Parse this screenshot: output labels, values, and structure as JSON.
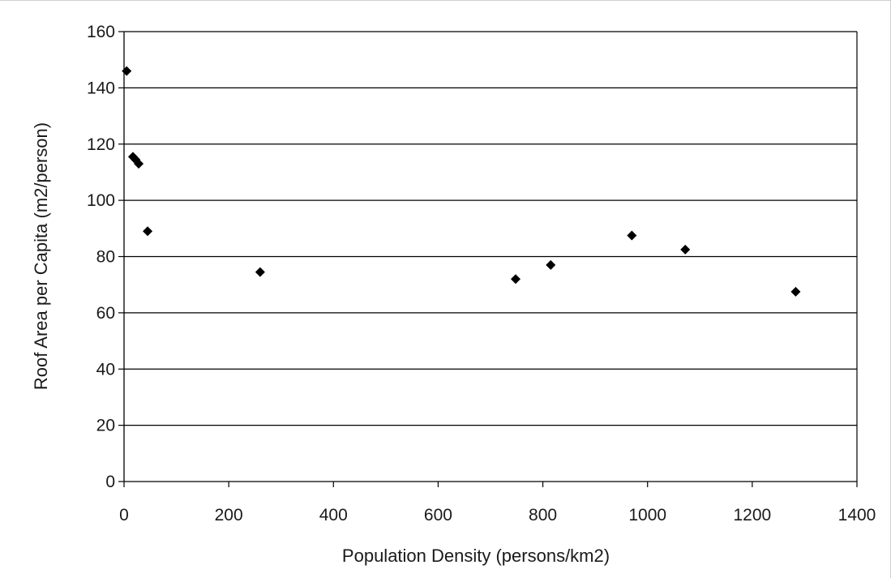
{
  "chart_data": {
    "type": "scatter",
    "title": "",
    "xlabel": "Population Density (persons/km2)",
    "ylabel": "Roof Area per Capita (m2/person)",
    "xlim": [
      0,
      1400
    ],
    "ylim": [
      0,
      160
    ],
    "xticks": [
      0,
      200,
      400,
      600,
      800,
      1000,
      1200,
      1400
    ],
    "yticks": [
      0,
      20,
      40,
      60,
      80,
      100,
      120,
      140,
      160
    ],
    "grid": "horizontal",
    "legend": "none",
    "marker": "diamond",
    "colors": {
      "marker": "#000000",
      "grid": "#000000",
      "axis": "#000000"
    },
    "series": [
      {
        "points": [
          {
            "x": 5,
            "y": 146
          },
          {
            "x": 17,
            "y": 115.5
          },
          {
            "x": 22,
            "y": 114.5
          },
          {
            "x": 28,
            "y": 113
          },
          {
            "x": 45,
            "y": 89
          },
          {
            "x": 260,
            "y": 74.5
          },
          {
            "x": 748,
            "y": 72
          },
          {
            "x": 815,
            "y": 77
          },
          {
            "x": 970,
            "y": 87.5
          },
          {
            "x": 1072,
            "y": 82.5
          },
          {
            "x": 1283,
            "y": 67.5
          }
        ]
      }
    ]
  }
}
